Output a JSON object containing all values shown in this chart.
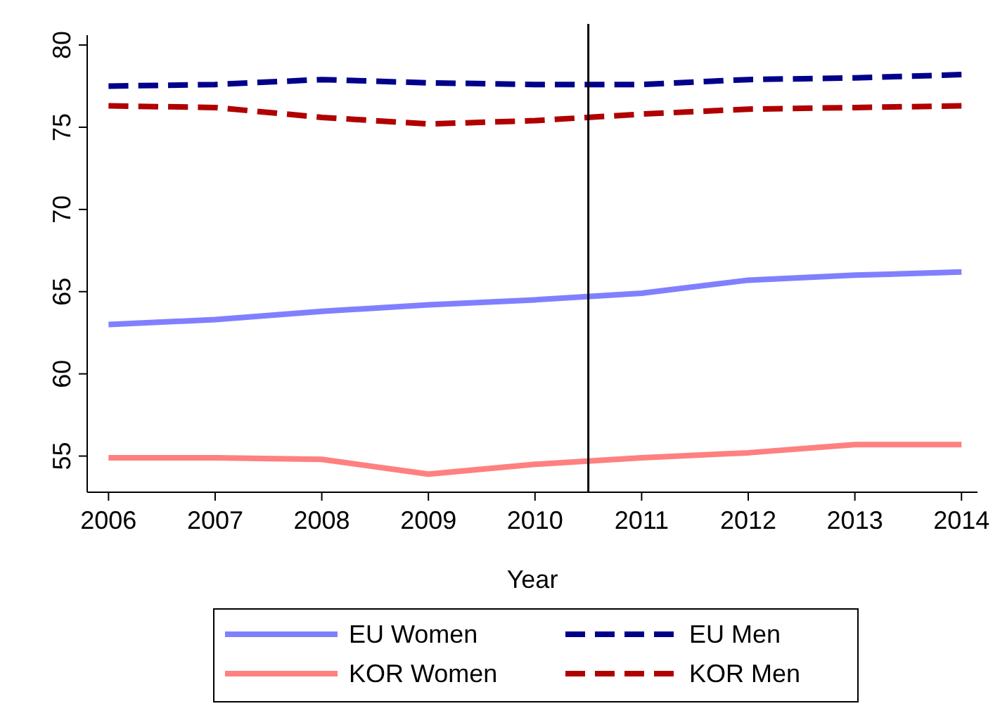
{
  "chart_data": {
    "type": "line",
    "xlabel": "Year",
    "x": [
      2006,
      2007,
      2008,
      2009,
      2010,
      2011,
      2012,
      2013,
      2014
    ],
    "xlim": [
      2005.8,
      2014.15
    ],
    "xticks": [
      2006,
      2007,
      2008,
      2009,
      2010,
      2011,
      2012,
      2013,
      2014
    ],
    "ylim": [
      52.8,
      80.6
    ],
    "yticks": [
      55,
      60,
      65,
      70,
      75,
      80
    ],
    "grid": false,
    "legend": "bottom",
    "series": [
      {
        "name": "EU Women",
        "color": "#8080ff",
        "line_style": "solid",
        "values": [
          63.0,
          63.3,
          63.8,
          64.2,
          64.5,
          64.9,
          65.7,
          66.0,
          66.2
        ]
      },
      {
        "name": "EU Men",
        "color": "#00008b",
        "line_style": "dashed",
        "values": [
          77.5,
          77.6,
          77.9,
          77.7,
          77.6,
          77.6,
          77.9,
          78.0,
          78.2
        ]
      },
      {
        "name": "KOR Women",
        "color": "#ff8080",
        "line_style": "solid",
        "values": [
          54.9,
          54.9,
          54.8,
          53.9,
          54.5,
          54.9,
          55.2,
          55.7,
          55.7
        ]
      },
      {
        "name": "KOR Men",
        "color": "#b00000",
        "line_style": "dashed",
        "values": [
          76.3,
          76.2,
          75.6,
          75.2,
          75.4,
          75.8,
          76.1,
          76.2,
          76.3
        ]
      }
    ],
    "ref_lines": [
      {
        "axis": "x",
        "value": 2010.5,
        "color": "#000000"
      }
    ]
  }
}
